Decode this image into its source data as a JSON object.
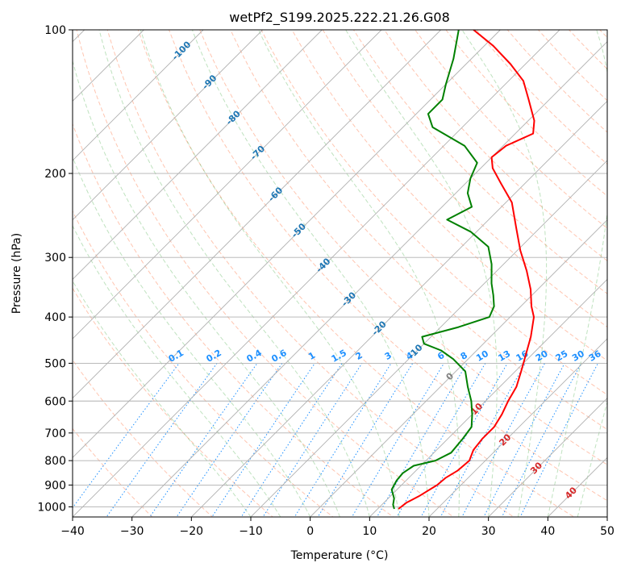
{
  "chart_data": {
    "type": "skew-t log-p",
    "title": "wetPf2_S199.2025.222.21.26.G08",
    "xlabel": "Temperature (°C)",
    "ylabel": "Pressure (hPa)",
    "xlim": [
      -40,
      50
    ],
    "plim": [
      1050,
      100
    ],
    "x_ticks": [
      "−40",
      "−30",
      "−20",
      "−10",
      "0",
      "10",
      "20",
      "30",
      "40",
      "50"
    ],
    "p_ticks": [
      "100",
      "200",
      "300",
      "400",
      "500",
      "600",
      "700",
      "800",
      "900",
      "1000"
    ],
    "temperature_profile": {
      "name": "temperature",
      "color": "#ff0000",
      "points": [
        [
          1010,
          13.5
        ],
        [
          980,
          13.8
        ],
        [
          950,
          14.8
        ],
        [
          900,
          16.0
        ],
        [
          870,
          16.2
        ],
        [
          840,
          17.0
        ],
        [
          800,
          17.3
        ],
        [
          760,
          16.2
        ],
        [
          720,
          15.8
        ],
        [
          680,
          15.8
        ],
        [
          640,
          15.0
        ],
        [
          600,
          13.8
        ],
        [
          560,
          12.8
        ],
        [
          520,
          11.0
        ],
        [
          480,
          9.0
        ],
        [
          440,
          6.8
        ],
        [
          400,
          4.0
        ],
        [
          380,
          1.8
        ],
        [
          350,
          -1.2
        ],
        [
          320,
          -5.0
        ],
        [
          290,
          -9.5
        ],
        [
          260,
          -14.0
        ],
        [
          230,
          -19.0
        ],
        [
          210,
          -24.0
        ],
        [
          195,
          -28.0
        ],
        [
          185,
          -30.0
        ],
        [
          175,
          -29.5
        ],
        [
          165,
          -27.0
        ],
        [
          155,
          -29.0
        ],
        [
          140,
          -33.5
        ],
        [
          128,
          -37.5
        ],
        [
          118,
          -42.5
        ],
        [
          108,
          -48.5
        ],
        [
          100,
          -54.5
        ]
      ]
    },
    "dewpoint_profile": {
      "name": "dewpoint",
      "color": "#008000",
      "points": [
        [
          1010,
          12.8
        ],
        [
          990,
          11.9
        ],
        [
          960,
          11.0
        ],
        [
          920,
          9.1
        ],
        [
          880,
          8.4
        ],
        [
          850,
          8.2
        ],
        [
          820,
          8.8
        ],
        [
          800,
          11.6
        ],
        [
          770,
          12.9
        ],
        [
          720,
          12.5
        ],
        [
          680,
          12.0
        ],
        [
          640,
          10.0
        ],
        [
          600,
          7.6
        ],
        [
          560,
          4.6
        ],
        [
          520,
          1.6
        ],
        [
          490,
          -2.5
        ],
        [
          470,
          -6.0
        ],
        [
          455,
          -10.0
        ],
        [
          440,
          -11.5
        ],
        [
          420,
          -7.0
        ],
        [
          400,
          -3.5
        ],
        [
          380,
          -4.5
        ],
        [
          360,
          -6.5
        ],
        [
          340,
          -8.8
        ],
        [
          310,
          -12.0
        ],
        [
          285,
          -15.5
        ],
        [
          265,
          -21.0
        ],
        [
          250,
          -27.0
        ],
        [
          235,
          -25.0
        ],
        [
          220,
          -28.0
        ],
        [
          205,
          -30.0
        ],
        [
          190,
          -31.5
        ],
        [
          175,
          -36.5
        ],
        [
          160,
          -45.0
        ],
        [
          150,
          -48.0
        ],
        [
          140,
          -48.0
        ],
        [
          130,
          -50.0
        ],
        [
          115,
          -53.0
        ],
        [
          100,
          -57.0
        ]
      ]
    },
    "dry_adiabats_C": [
      -100,
      -90,
      -80,
      -70,
      -60,
      -50,
      -40,
      -30,
      -20,
      -10,
      0,
      10,
      20,
      30,
      40
    ],
    "mixing_ratio_labels": [
      "0.1",
      "0.2",
      "0.4",
      "0.6",
      "1",
      "1.5",
      "2",
      "3",
      "4",
      "6",
      "8",
      "10",
      "13",
      "16",
      "20",
      "25",
      "30",
      "36"
    ],
    "mixing_ratio_values": [
      0.1,
      0.2,
      0.4,
      0.6,
      1,
      1.5,
      2,
      3,
      4,
      6,
      8,
      10,
      13,
      16,
      20,
      25,
      30,
      36
    ],
    "isotherm_labels": [
      {
        "text": "-100",
        "p": 110
      },
      {
        "text": "-90",
        "p": 128
      },
      {
        "text": "-80",
        "p": 152
      },
      {
        "text": "-70",
        "p": 180
      },
      {
        "text": "-60",
        "p": 220
      },
      {
        "text": "-50",
        "p": 262
      },
      {
        "text": "-40",
        "p": 310
      },
      {
        "text": "-30",
        "p": 365
      },
      {
        "text": "-20",
        "p": 420
      },
      {
        "text": "-10",
        "p": 470
      },
      {
        "text": "0",
        "p": 530
      },
      {
        "text": "10",
        "p": 620
      },
      {
        "text": "20",
        "p": 720
      },
      {
        "text": "30",
        "p": 825
      },
      {
        "text": "40",
        "p": 930
      }
    ],
    "colors": {
      "isotherm_cold": "#1f77b4",
      "isotherm_zero": "#808080",
      "isotherm_warm": "#d62728",
      "mixing_ratio": "#1e90ff",
      "dry_adiabat": "#ff7f50",
      "moist_adiabat": "#2ca02c",
      "grid": "#b0b0b0"
    }
  }
}
